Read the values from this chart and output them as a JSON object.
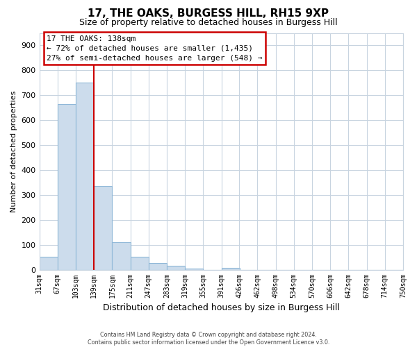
{
  "title": "17, THE OAKS, BURGESS HILL, RH15 9XP",
  "subtitle": "Size of property relative to detached houses in Burgess Hill",
  "xlabel": "Distribution of detached houses by size in Burgess Hill",
  "ylabel": "Number of detached properties",
  "footer_line1": "Contains HM Land Registry data © Crown copyright and database right 2024.",
  "footer_line2": "Contains public sector information licensed under the Open Government Licence v3.0.",
  "bin_edges": [
    31,
    67,
    103,
    139,
    175,
    211,
    247,
    283,
    319,
    355,
    391,
    426,
    462,
    498,
    534,
    570,
    606,
    642,
    678,
    714,
    750
  ],
  "bin_labels": [
    "31sqm",
    "67sqm",
    "103sqm",
    "139sqm",
    "175sqm",
    "211sqm",
    "247sqm",
    "283sqm",
    "319sqm",
    "355sqm",
    "391sqm",
    "426sqm",
    "462sqm",
    "498sqm",
    "534sqm",
    "570sqm",
    "606sqm",
    "642sqm",
    "678sqm",
    "714sqm",
    "750sqm"
  ],
  "bar_heights": [
    52,
    665,
    750,
    335,
    110,
    52,
    27,
    15,
    5,
    0,
    8,
    0,
    0,
    0,
    0,
    0,
    0,
    0,
    0,
    0
  ],
  "bar_color": "#ccdcec",
  "bar_edge_color": "#90b8d8",
  "property_line_x": 139,
  "property_line_color": "#cc0000",
  "ylim": [
    0,
    950
  ],
  "yticks": [
    0,
    100,
    200,
    300,
    400,
    500,
    600,
    700,
    800,
    900
  ],
  "annotation_line1": "17 THE OAKS: 138sqm",
  "annotation_line2": "← 72% of detached houses are smaller (1,435)",
  "annotation_line3": "27% of semi-detached houses are larger (548) →",
  "bg_color": "#ffffff",
  "grid_color": "#c8d4e0",
  "ann_box_edge_color": "#cc0000",
  "title_fontsize": 11,
  "subtitle_fontsize": 9,
  "ylabel_fontsize": 8,
  "xlabel_fontsize": 9,
  "ytick_fontsize": 8,
  "xtick_fontsize": 7
}
